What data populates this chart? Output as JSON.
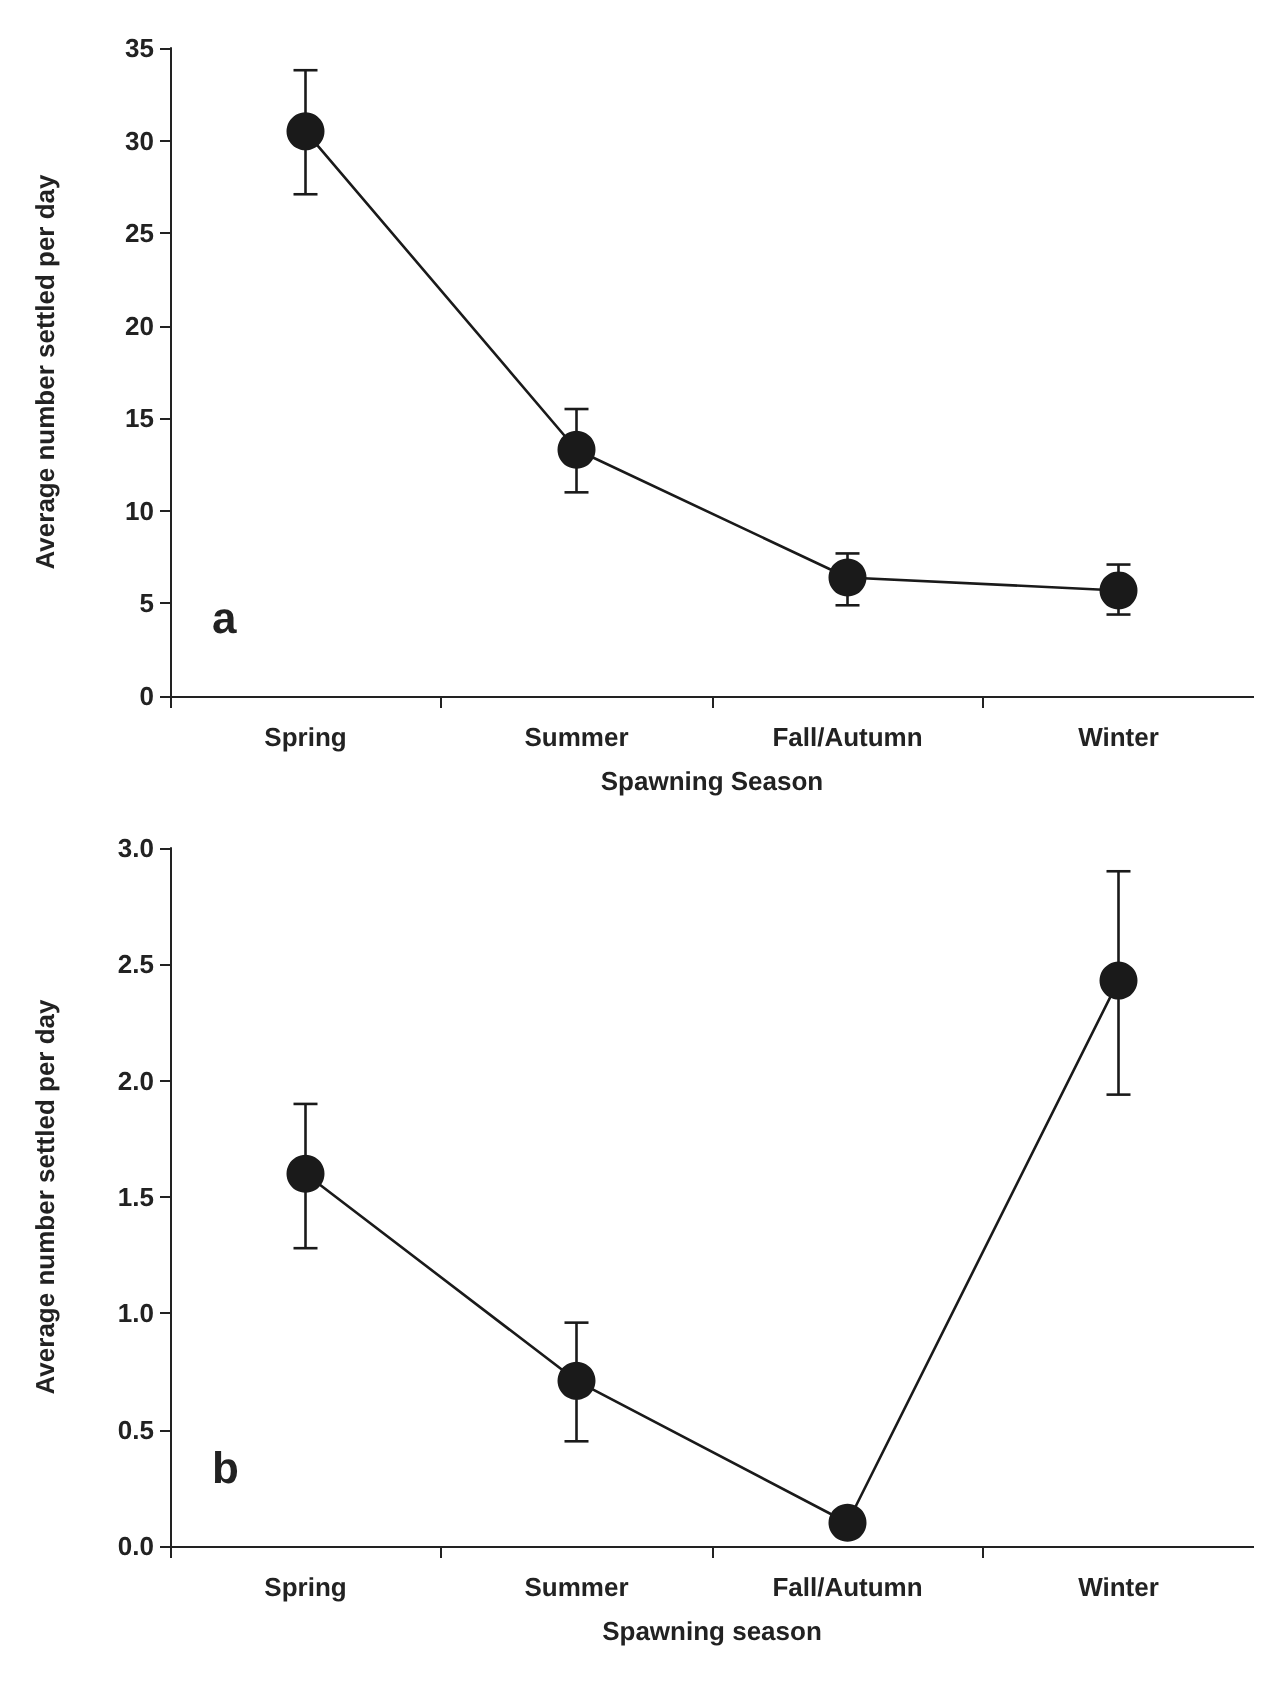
{
  "chart_data": [
    {
      "type": "line",
      "xlabel": "Spawning Season",
      "ylabel": "Average number settled per day",
      "categories": [
        "Spring",
        "Summer",
        "Fall/Autumn",
        "Winter"
      ],
      "series": [
        {
          "color": "#1a1a1a",
          "values": [
            30.5,
            13.3,
            6.4,
            5.7
          ],
          "errors": [
            [
              27.1,
              33.8
            ],
            [
              11,
              15.5
            ],
            [
              4.9,
              7.7
            ],
            [
              4.4,
              7.1
            ]
          ]
        }
      ],
      "ylim": [
        0,
        35
      ],
      "yticks": [
        0,
        5,
        10,
        15,
        20,
        25,
        30,
        35
      ],
      "grid": false,
      "marker": "circle",
      "line_style": "solid",
      "annotations": [
        "a"
      ]
    },
    {
      "type": "line",
      "xlabel": "Spawning season",
      "ylabel": "Average number settled per day",
      "categories": [
        "Spring",
        "Summer",
        "Fall/Autumn",
        "Winter"
      ],
      "series": [
        {
          "color": "#1a1a1a",
          "values": [
            1.6,
            0.71,
            0.1,
            2.43
          ],
          "errors": [
            [
              1.28,
              1.9
            ],
            [
              0.45,
              0.96
            ],
            null,
            [
              1.94,
              2.9
            ]
          ]
        }
      ],
      "ylim": [
        0,
        3
      ],
      "yticks": [
        {
          "value": 0,
          "label": "0.0"
        },
        {
          "value": 0.5,
          "label": "0.5"
        },
        {
          "value": 1,
          "label": "1.0"
        },
        {
          "value": 1.5,
          "label": "1.5"
        },
        {
          "value": 2,
          "label": "2.0"
        },
        {
          "value": 2.5,
          "label": "2.5"
        },
        {
          "value": 3,
          "label": "3.0"
        }
      ],
      "grid": false,
      "marker": "circle",
      "line_style": "solid",
      "annotations": [
        "b"
      ]
    }
  ]
}
